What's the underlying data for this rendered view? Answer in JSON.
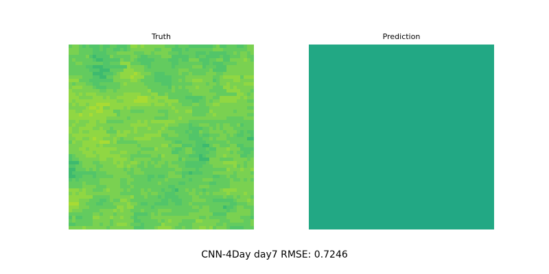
{
  "chart_data": [
    {
      "type": "heatmap",
      "title": "Truth",
      "grid": false,
      "axes": "off",
      "colormap": "viridis",
      "grid_cells": [
        54,
        54
      ],
      "color_range_hint": "mostly green (#3dba6f) to yellow-green (#a8db34), occasional teal",
      "palette": [
        "#2ab07f",
        "#3dba6f",
        "#52c569",
        "#63cb5f",
        "#7ad151",
        "#90d743",
        "#a8db34",
        "#b8de29"
      ],
      "seed": 7
    },
    {
      "type": "heatmap",
      "title": "Prediction",
      "grid": false,
      "axes": "off",
      "colormap": "viridis",
      "uniform_color": "#22a884"
    }
  ],
  "figure": {
    "suptitle": "CNN-4Day day7 RMSE: 0.7246"
  }
}
